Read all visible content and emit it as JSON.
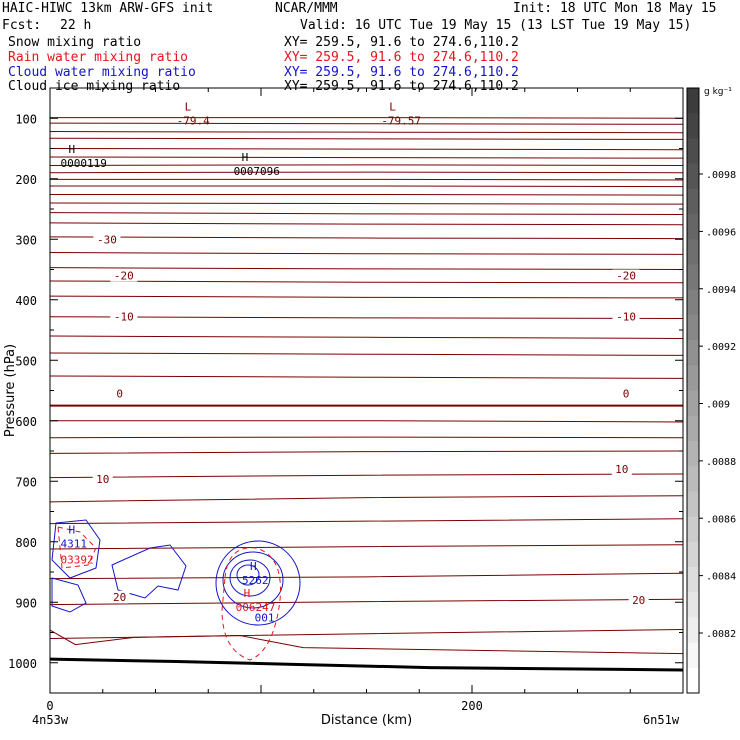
{
  "header": {
    "title_left": "HAIC-HIWC 13km ARW-GFS init",
    "org": "NCAR/MMM",
    "init": "Init: 18 UTC Mon 18 May 15",
    "fcst_label": "Fcst:",
    "fcst_value": "22 h",
    "valid": "Valid: 16 UTC Tue 19 May 15 (13 LST Tue 19 May 15)"
  },
  "fields": [
    {
      "name": "Snow mixing ratio",
      "xy": "XY= 259.5, 91.6 to 274.6,110.2",
      "color": "#000000"
    },
    {
      "name": "Rain water mixing ratio",
      "xy": "XY= 259.5, 91.6 to 274.6,110.2",
      "color": "#e8141e"
    },
    {
      "name": "Cloud water mixing ratio",
      "xy": "XY= 259.5, 91.6 to 274.6,110.2",
      "color": "#1414c8"
    },
    {
      "name": "Cloud ice mixing ratio",
      "xy": "XY= 259.5, 91.6 to 274.6,110.2",
      "color": "#000000"
    }
  ],
  "chart_data": {
    "type": "contour cross-section",
    "xlabel": "Distance (km)",
    "ylabel": "Pressure (hPa)",
    "x_ticks": [
      0,
      200
    ],
    "xlim": [
      0,
      300
    ],
    "y_ticks": [
      100,
      200,
      300,
      400,
      500,
      600,
      700,
      800,
      900,
      1000
    ],
    "ylim": [
      1050,
      50
    ],
    "y_scale": "linear (inverted)",
    "x_start_label": "4n53w",
    "x_end_label": "6n51w",
    "colorbar": {
      "unit": "g kg⁻¹",
      "labels": [
        ".0098",
        ".0096",
        ".0094",
        ".0092",
        ".009",
        ".0088",
        ".0086",
        ".0084",
        ".0082"
      ]
    },
    "temperature_labels": [
      {
        "text": "-30",
        "x": 27,
        "p": 300
      },
      {
        "text": "-20",
        "x": 35,
        "p": 360
      },
      {
        "text": "-20",
        "x": 273,
        "p": 360
      },
      {
        "text": "-10",
        "x": 35,
        "p": 428
      },
      {
        "text": "-10",
        "x": 273,
        "p": 428
      },
      {
        "text": "0",
        "x": 33,
        "p": 555
      },
      {
        "text": "0",
        "x": 273,
        "p": 555
      },
      {
        "text": "10",
        "x": 25,
        "p": 696
      },
      {
        "text": "10",
        "x": 271,
        "p": 680
      },
      {
        "text": "20",
        "x": 33,
        "p": 891
      },
      {
        "text": "20",
        "x": 279,
        "p": 896
      }
    ],
    "extrema": [
      {
        "marker": "L",
        "value": "-79.4",
        "x": 60,
        "p": 104,
        "color": "#7a0000"
      },
      {
        "marker": "L",
        "value": "-79.57",
        "x": 157,
        "p": 104,
        "color": "#7a0000"
      },
      {
        "marker": "H",
        "value": "0000119",
        "x": 5,
        "p": 174,
        "color": "#000000"
      },
      {
        "marker": "H",
        "value": "0007096",
        "x": 87,
        "p": 187,
        "color": "#000000"
      },
      {
        "marker": "H",
        "value": "4311",
        "x": 5,
        "p": 803,
        "color": "#1414c8"
      },
      {
        "marker": "",
        "value": "03392",
        "x": 5,
        "p": 829,
        "color": "#e8141e"
      },
      {
        "marker": "H",
        "value": "5262",
        "x": 91,
        "p": 863,
        "color": "#1414c8"
      },
      {
        "marker": "H",
        "value": "006247",
        "x": 88,
        "p": 908,
        "color": "#e8141e"
      },
      {
        "marker": "",
        "value": "001",
        "x": 97,
        "p": 925,
        "color": "#1414c8"
      }
    ]
  }
}
